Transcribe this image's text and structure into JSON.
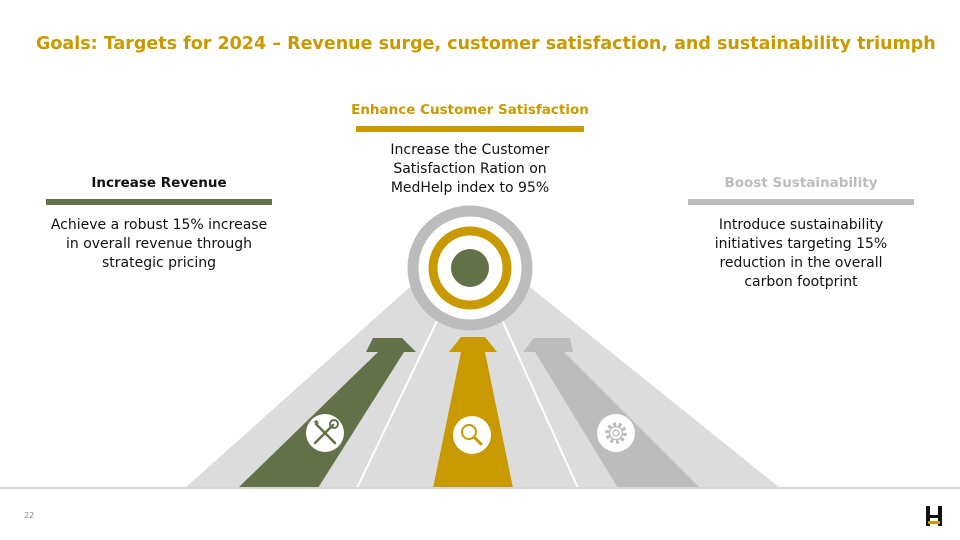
{
  "slide": {
    "title": "Goals: Targets for 2024 – Revenue surge, customer satisfaction, and sustainability triumph",
    "page_number": "22"
  },
  "colors": {
    "gold": "#C99A00",
    "olive": "#637149",
    "gray": "#BCBCBC",
    "light_gray": "#DCDCDC",
    "text": "#111111"
  },
  "goals": [
    {
      "heading": "Increase Revenue",
      "description": "Achieve a robust 15% increase in overall revenue through strategic pricing",
      "icon": "tools-icon"
    },
    {
      "heading": "Enhance Customer Satisfaction",
      "description": "Increase the Customer Satisfaction Ration on MedHelp index to 95%",
      "icon": "magnifier-icon"
    },
    {
      "heading": "Boost Sustainability",
      "description": "Introduce sustainability initiatives targeting 15% reduction in the overall carbon footprint",
      "icon": "gear-icon"
    }
  ]
}
